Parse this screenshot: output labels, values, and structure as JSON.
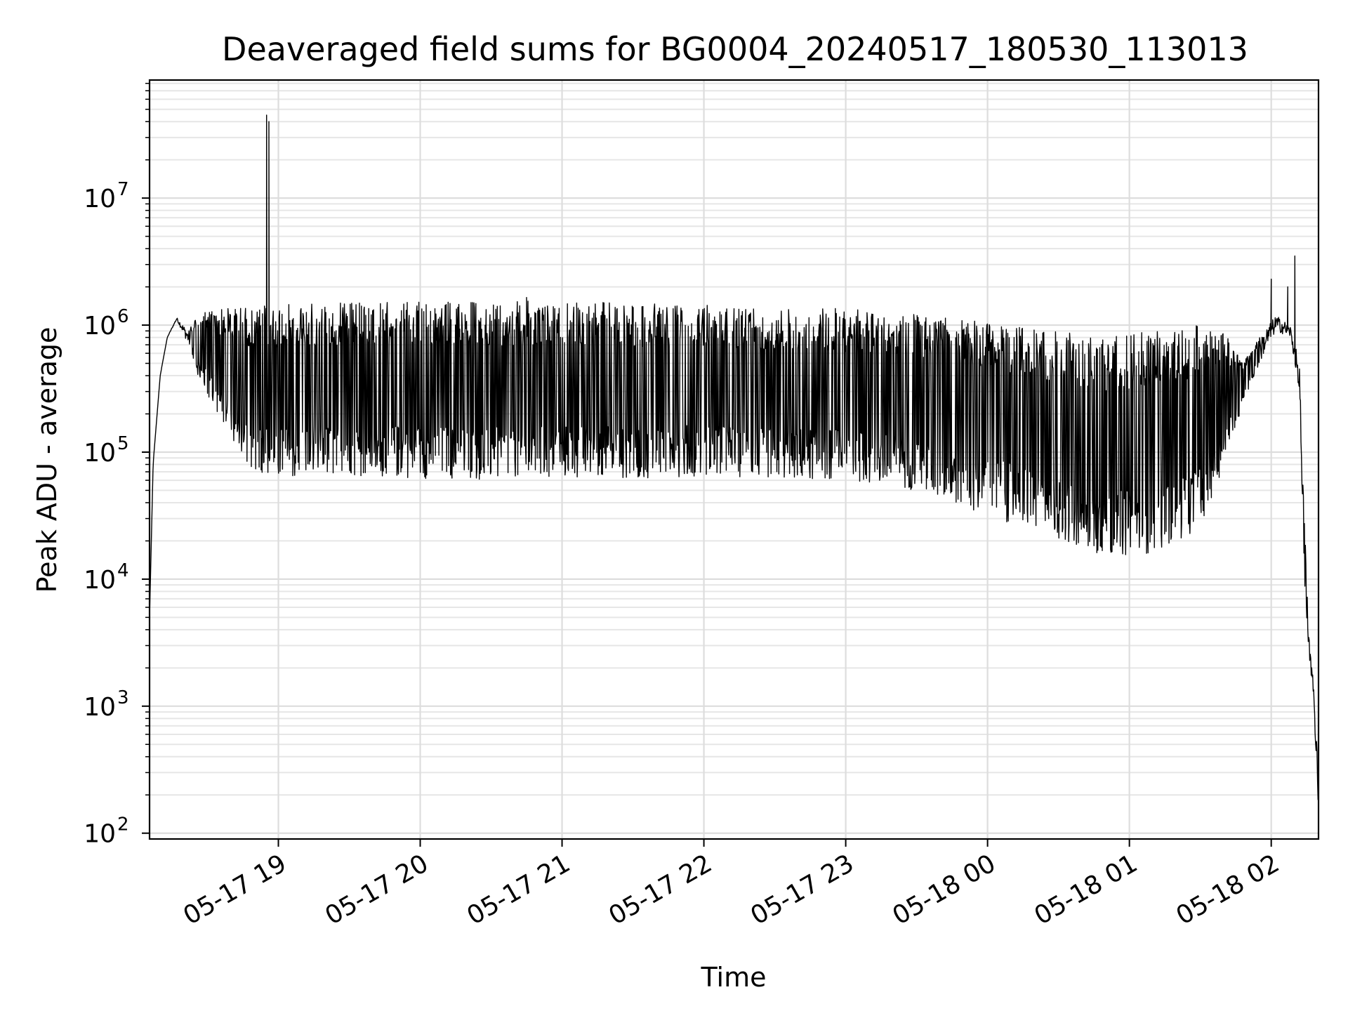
{
  "chart_data": {
    "type": "line",
    "title": "Deaveraged field sums for BG0004_20240517_180530_113013",
    "xlabel": "Time",
    "ylabel": "Peak ADU - average",
    "yscale": "log",
    "ylim": [
      90,
      85000000
    ],
    "xlim": [
      "2024-05-17 18:05:30",
      "2024-05-18 02:20:00"
    ],
    "grid": "on (major and minor)",
    "line_color": "#000000",
    "x_ticks": [
      {
        "value": "2024-05-17 19:00",
        "label": "05-17 19"
      },
      {
        "value": "2024-05-17 20:00",
        "label": "05-17 20"
      },
      {
        "value": "2024-05-17 21:00",
        "label": "05-17 21"
      },
      {
        "value": "2024-05-17 22:00",
        "label": "05-17 22"
      },
      {
        "value": "2024-05-17 23:00",
        "label": "05-17 23"
      },
      {
        "value": "2024-05-18 00:00",
        "label": "05-18 00"
      },
      {
        "value": "2024-05-18 01:00",
        "label": "05-18 01"
      },
      {
        "value": "2024-05-18 02:00",
        "label": "05-18 02"
      }
    ],
    "y_ticks": [
      {
        "value": 100,
        "base": "10",
        "exp": "2"
      },
      {
        "value": 1000,
        "base": "10",
        "exp": "3"
      },
      {
        "value": 10000,
        "base": "10",
        "exp": "4"
      },
      {
        "value": 100000,
        "base": "10",
        "exp": "5"
      },
      {
        "value": 1000000,
        "base": "10",
        "exp": "6"
      },
      {
        "value": 10000000,
        "base": "10",
        "exp": "7"
      }
    ],
    "series": [
      {
        "envelope": [
          {
            "t": "2024-05-17 18:05:30",
            "low": 5000,
            "high": 5000
          },
          {
            "t": "2024-05-17 18:07",
            "low": 80000,
            "high": 80000
          },
          {
            "t": "2024-05-17 18:10",
            "low": 400000,
            "high": 400000
          },
          {
            "t": "2024-05-17 18:13",
            "low": 800000,
            "high": 800000
          },
          {
            "t": "2024-05-17 18:17",
            "low": 1100000,
            "high": 1150000
          },
          {
            "t": "2024-05-17 18:22",
            "low": 700000,
            "high": 900000
          },
          {
            "t": "2024-05-17 18:27",
            "low": 350000,
            "high": 1300000
          },
          {
            "t": "2024-05-17 18:35",
            "low": 180000,
            "high": 1350000
          },
          {
            "t": "2024-05-17 18:45",
            "low": 80000,
            "high": 1400000
          },
          {
            "t": "2024-05-17 19:00",
            "low": 60000,
            "high": 1450000
          },
          {
            "t": "2024-05-17 19:30",
            "low": 65000,
            "high": 1500000
          },
          {
            "t": "2024-05-17 20:00",
            "low": 62000,
            "high": 1550000
          },
          {
            "t": "2024-05-17 20:30",
            "low": 60000,
            "high": 1550000
          },
          {
            "t": "2024-05-17 21:00",
            "low": 62000,
            "high": 1550000
          },
          {
            "t": "2024-05-17 21:30",
            "low": 62000,
            "high": 1500000
          },
          {
            "t": "2024-05-17 22:00",
            "low": 65000,
            "high": 1450000
          },
          {
            "t": "2024-05-17 22:30",
            "low": 62000,
            "high": 1400000
          },
          {
            "t": "2024-05-17 23:00",
            "low": 60000,
            "high": 1350000
          },
          {
            "t": "2024-05-17 23:30",
            "low": 50000,
            "high": 1250000
          },
          {
            "t": "2024-05-18 00:00",
            "low": 32000,
            "high": 1100000
          },
          {
            "t": "2024-05-18 00:30",
            "low": 20000,
            "high": 900000
          },
          {
            "t": "2024-05-18 00:50",
            "low": 15000,
            "high": 800000
          },
          {
            "t": "2024-05-18 01:10",
            "low": 16000,
            "high": 900000
          },
          {
            "t": "2024-05-18 01:30",
            "low": 25000,
            "high": 1000000
          },
          {
            "t": "2024-05-18 01:40",
            "low": 80000,
            "high": 900000
          },
          {
            "t": "2024-05-18 01:48",
            "low": 230000,
            "high": 500000
          },
          {
            "t": "2024-05-18 01:55",
            "low": 500000,
            "high": 800000
          },
          {
            "t": "2024-05-18 02:02",
            "low": 900000,
            "high": 1200000
          },
          {
            "t": "2024-05-18 02:08",
            "low": 800000,
            "high": 1000000
          },
          {
            "t": "2024-05-18 02:12",
            "low": 300000,
            "high": 500000
          },
          {
            "t": "2024-05-18 02:14",
            "low": 10000,
            "high": 30000
          },
          {
            "t": "2024-05-18 02:16",
            "low": 2500,
            "high": 3500
          },
          {
            "t": "2024-05-18 02:18",
            "low": 1000,
            "high": 1500
          },
          {
            "t": "2024-05-18 02:20",
            "low": 150,
            "high": 300
          }
        ],
        "spikes": [
          {
            "t": "2024-05-17 18:55",
            "value": 45000000
          },
          {
            "t": "2024-05-17 18:56",
            "value": 40000000
          },
          {
            "t": "2024-05-18 02:00",
            "value": 2300000
          },
          {
            "t": "2024-05-18 02:10",
            "value": 3500000
          },
          {
            "t": "2024-05-18 02:07",
            "value": 2000000
          },
          {
            "t": "2024-05-17 20:45",
            "value": 1650000
          }
        ]
      }
    ]
  }
}
